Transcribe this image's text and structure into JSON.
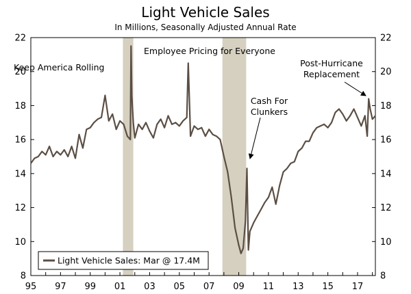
{
  "chart_data": {
    "type": "line",
    "title": "Light Vehicle Sales",
    "subtitle": "In Millions, Seasonally Adjusted Annual Rate",
    "xlim": [
      1995,
      2018.2
    ],
    "ylim": [
      8,
      22
    ],
    "x_ticks": [
      {
        "value": 1995,
        "label": "95"
      },
      {
        "value": 1997,
        "label": "97"
      },
      {
        "value": 1999,
        "label": "99"
      },
      {
        "value": 2001,
        "label": "01"
      },
      {
        "value": 2003,
        "label": "03"
      },
      {
        "value": 2005,
        "label": "05"
      },
      {
        "value": 2007,
        "label": "07"
      },
      {
        "value": 2009,
        "label": "09"
      },
      {
        "value": 2011,
        "label": "11"
      },
      {
        "value": 2013,
        "label": "13"
      },
      {
        "value": 2015,
        "label": "15"
      },
      {
        "value": 2017,
        "label": "17"
      }
    ],
    "y_ticks": [
      8,
      10,
      12,
      14,
      16,
      18,
      20,
      22
    ],
    "recessions": [
      {
        "start": 2001.2,
        "end": 2001.9
      },
      {
        "start": 2007.9,
        "end": 2009.5
      }
    ],
    "colors": {
      "line": "#5b4e44",
      "recession": "#d5d0c0"
    },
    "series": [
      {
        "name": "Light Vehicle Sales",
        "x": [
          1995.0,
          1995.25,
          1995.5,
          1995.75,
          1996.0,
          1996.25,
          1996.5,
          1996.75,
          1997.0,
          1997.25,
          1997.5,
          1997.75,
          1998.0,
          1998.25,
          1998.5,
          1998.75,
          1999.0,
          1999.25,
          1999.5,
          1999.75,
          2000.0,
          2000.25,
          2000.5,
          2000.75,
          2001.0,
          2001.25,
          2001.5,
          2001.7,
          2001.75,
          2001.8,
          2001.9,
          2002.0,
          2002.25,
          2002.5,
          2002.75,
          2003.0,
          2003.25,
          2003.5,
          2003.75,
          2004.0,
          2004.25,
          2004.5,
          2004.75,
          2005.0,
          2005.25,
          2005.5,
          2005.6,
          2005.75,
          2006.0,
          2006.25,
          2006.5,
          2006.75,
          2007.0,
          2007.25,
          2007.5,
          2007.75,
          2008.0,
          2008.25,
          2008.5,
          2008.75,
          2009.0,
          2009.15,
          2009.3,
          2009.45,
          2009.55,
          2009.65,
          2009.75,
          2010.0,
          2010.25,
          2010.5,
          2010.75,
          2011.0,
          2011.25,
          2011.5,
          2011.75,
          2012.0,
          2012.25,
          2012.5,
          2012.75,
          2013.0,
          2013.25,
          2013.5,
          2013.75,
          2014.0,
          2014.25,
          2014.5,
          2014.75,
          2015.0,
          2015.25,
          2015.5,
          2015.75,
          2016.0,
          2016.25,
          2016.5,
          2016.75,
          2017.0,
          2017.25,
          2017.5,
          2017.65,
          2017.75,
          2017.85,
          2018.0,
          2018.2
        ],
        "values": [
          14.6,
          14.9,
          15.0,
          15.3,
          15.1,
          15.6,
          15.0,
          15.3,
          15.1,
          15.4,
          15.0,
          15.6,
          14.9,
          16.3,
          15.5,
          16.6,
          16.7,
          17.0,
          17.2,
          17.3,
          18.6,
          17.1,
          17.5,
          16.6,
          17.1,
          16.9,
          16.2,
          16.0,
          21.5,
          18.6,
          17.0,
          16.1,
          16.9,
          16.6,
          17.0,
          16.5,
          16.1,
          16.9,
          17.2,
          16.7,
          17.4,
          16.9,
          17.0,
          16.8,
          17.1,
          17.3,
          20.5,
          16.2,
          16.8,
          16.6,
          16.7,
          16.2,
          16.6,
          16.3,
          16.2,
          16.0,
          15.0,
          14.1,
          12.6,
          10.8,
          9.8,
          9.3,
          9.6,
          11.2,
          14.3,
          9.5,
          10.6,
          11.1,
          11.5,
          11.9,
          12.3,
          12.6,
          13.2,
          12.2,
          13.3,
          14.1,
          14.3,
          14.6,
          14.7,
          15.3,
          15.5,
          15.9,
          15.9,
          16.4,
          16.7,
          16.8,
          16.9,
          16.7,
          17.0,
          17.6,
          17.8,
          17.5,
          17.1,
          17.4,
          17.8,
          17.3,
          16.8,
          17.4,
          16.2,
          18.4,
          17.8,
          17.2,
          17.4
        ]
      }
    ],
    "annotations": [
      {
        "text_lines": [
          "Keep America Rolling"
        ],
        "target": [
          2001.75,
          21.5
        ]
      },
      {
        "text_lines": [
          "Employee Pricing for Everyone"
        ],
        "target": [
          2005.6,
          20.4
        ]
      },
      {
        "text_lines": [
          "Cash For",
          "Clunkers"
        ],
        "target": [
          2009.55,
          14.4
        ]
      },
      {
        "text_lines": [
          "Post-Hurricane",
          "Replacement"
        ],
        "target": [
          2017.75,
          18.6
        ]
      }
    ],
    "legend": {
      "label": "Light Vehicle Sales: Mar @ 17.4M",
      "position": "bottom-left"
    }
  }
}
